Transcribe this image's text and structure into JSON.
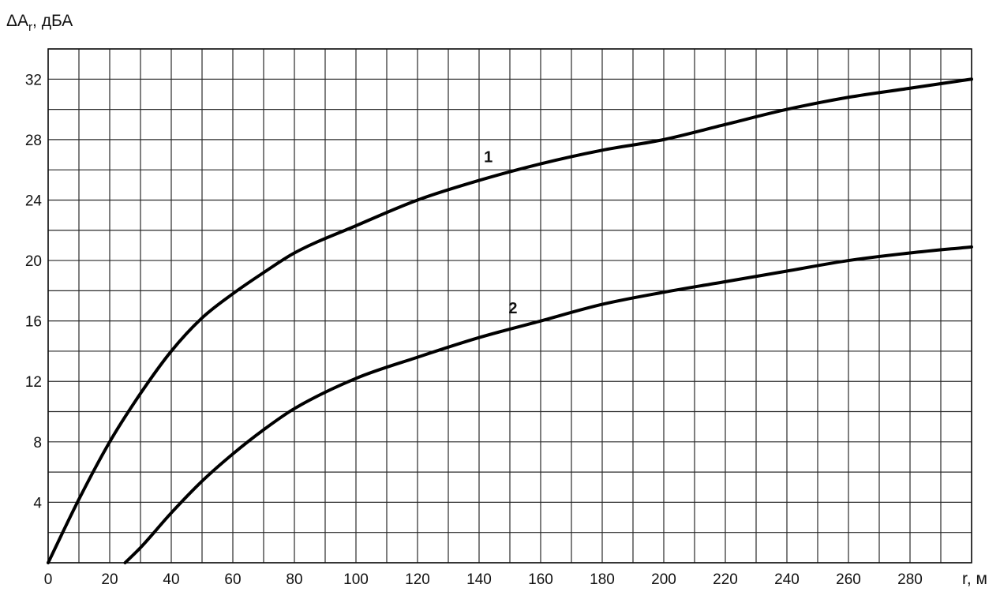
{
  "chart_data": {
    "type": "line",
    "ylabel_main": "ΔA",
    "ylabel_sub": "r",
    "ylabel_unit": ", дБА",
    "xlabel": "r, м",
    "xlim": [
      0,
      300
    ],
    "ylim": [
      0,
      34
    ],
    "x_ticks": [
      0,
      20,
      40,
      60,
      80,
      100,
      120,
      140,
      160,
      180,
      200,
      220,
      240,
      260,
      280
    ],
    "y_ticks": [
      4,
      8,
      12,
      16,
      20,
      24,
      28,
      32
    ],
    "x_grid_step": 10,
    "y_grid_step": 2,
    "grid": true,
    "series": [
      {
        "name": "1",
        "label_at": [
          143,
          26.5
        ],
        "x": [
          0,
          10,
          20,
          30,
          40,
          50,
          60,
          70,
          80,
          100,
          120,
          140,
          160,
          180,
          200,
          220,
          240,
          260,
          280,
          300
        ],
        "y": [
          0,
          4.2,
          8.0,
          11.2,
          14.0,
          16.2,
          17.8,
          19.2,
          20.5,
          22.3,
          24.0,
          25.3,
          26.4,
          27.3,
          28.0,
          29.0,
          30.0,
          30.8,
          31.4,
          32.0
        ]
      },
      {
        "name": "2",
        "label_at": [
          151,
          16.5
        ],
        "x": [
          25,
          30,
          40,
          50,
          60,
          70,
          80,
          100,
          120,
          140,
          160,
          180,
          200,
          220,
          240,
          260,
          280,
          300
        ],
        "y": [
          0,
          1.0,
          3.3,
          5.4,
          7.2,
          8.8,
          10.2,
          12.2,
          13.6,
          14.9,
          16.0,
          17.1,
          17.9,
          18.6,
          19.3,
          20.0,
          20.5,
          20.9
        ]
      }
    ]
  }
}
